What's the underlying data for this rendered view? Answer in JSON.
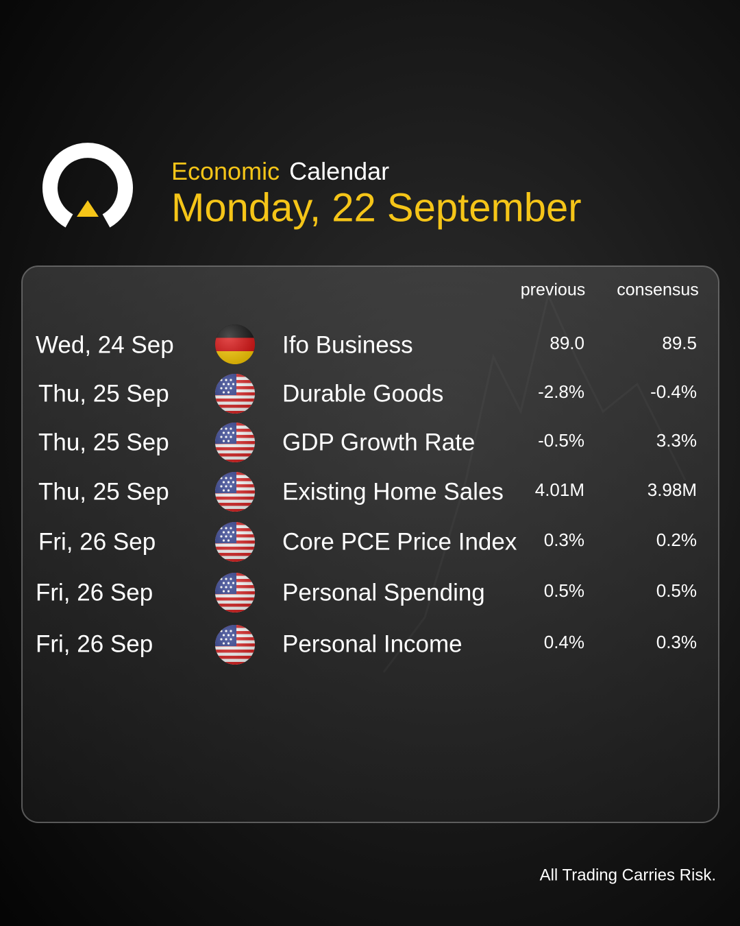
{
  "header": {
    "title_highlight": "Economic",
    "title": "Calendar",
    "date": "Monday, 22 September"
  },
  "table": {
    "columns": [
      "previous",
      "consensus"
    ],
    "rows": [
      {
        "date": "Wed, 24 Sep",
        "event": "Ifo Business",
        "previous": "89.0",
        "consensus": "89.5"
      },
      {
        "date": "Thu, 25 Sep",
        "event": "Durable Goods",
        "previous": "-2.8%",
        "consensus": "-0.4%"
      },
      {
        "date": "Thu, 25 Sep",
        "event": "GDP Growth Rate",
        "previous": "-0.5%",
        "consensus": "3.3%"
      },
      {
        "date": "Thu, 25 Sep",
        "event": "Existing Home Sales",
        "previous": "4.01M",
        "consensus": "3.98M"
      },
      {
        "date": "Fri, 26 Sep",
        "event": "Core PCE Price Index",
        "previous": "0.3%",
        "consensus": "0.2%"
      },
      {
        "date": "Fri, 26 Sep",
        "event": "Personal Spending",
        "previous": "0.5%",
        "consensus": "0.5%"
      },
      {
        "date": "Fri, 26 Sep",
        "event": "Personal Income",
        "previous": "0.4%",
        "consensus": "0.3%"
      }
    ]
  },
  "footer": "All Trading Carries Risk."
}
